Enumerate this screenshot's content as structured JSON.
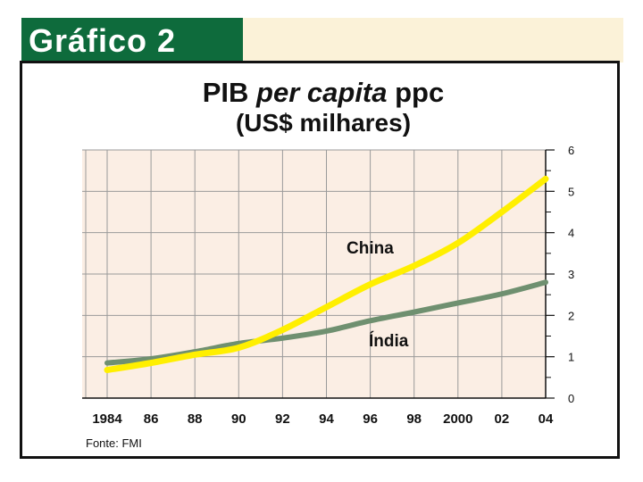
{
  "header": {
    "title": "Gráfico 2"
  },
  "colors": {
    "header_green": "#0e6b3c",
    "header_strip": "#fbf2d8",
    "plot_background": "#fbeee4",
    "grid": "#9a9a9a",
    "china_line": "#ffef00",
    "india_line": "#6f9070"
  },
  "chart_data": {
    "type": "line",
    "title_parts": [
      "PIB ",
      "per capita",
      " ppc"
    ],
    "subtitle": "(US$ milhares)",
    "x_ticks": [
      "1984",
      "86",
      "88",
      "90",
      "92",
      "94",
      "96",
      "98",
      "2000",
      "02",
      "04"
    ],
    "x": [
      1984,
      1986,
      1988,
      1990,
      1992,
      1994,
      1996,
      1998,
      2000,
      2002,
      2004
    ],
    "y_ticks": [
      "0",
      "1",
      "2",
      "3",
      "4",
      "5",
      "6"
    ],
    "ylim": [
      0,
      6
    ],
    "xlim": [
      1984,
      2004
    ],
    "y_axis_side": "right",
    "grid": true,
    "series": [
      {
        "name": "China",
        "color": "#ffef00",
        "values": [
          0.68,
          0.85,
          1.05,
          1.22,
          1.65,
          2.2,
          2.75,
          3.2,
          3.75,
          4.5,
          5.3
        ]
      },
      {
        "name": "Índia",
        "color": "#6f9070",
        "values": [
          0.85,
          0.95,
          1.12,
          1.32,
          1.45,
          1.62,
          1.87,
          2.08,
          2.3,
          2.52,
          2.8
        ]
      }
    ],
    "source": "Fonte: FMI"
  }
}
